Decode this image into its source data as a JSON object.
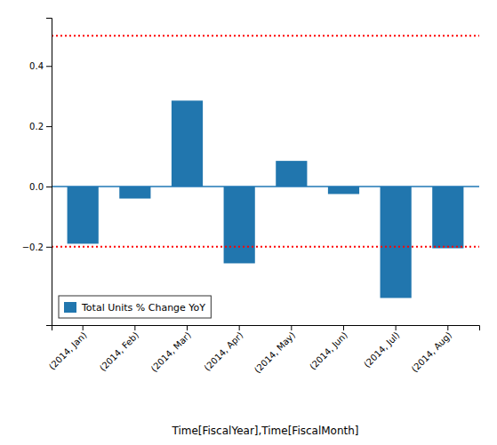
{
  "chart_data": {
    "type": "bar",
    "categories": [
      "(2014, Jan)",
      "(2014, Feb)",
      "(2014, Mar)",
      "(2014, Apr)",
      "(2014, May)",
      "(2014, Jun)",
      "(2014, Jul)",
      "(2014, Aug)"
    ],
    "series": [
      {
        "name": "Total Units % Change YoY",
        "color": "#2176ae",
        "values": [
          -0.19,
          -0.04,
          0.285,
          -0.255,
          0.085,
          -0.025,
          -0.37,
          -0.205
        ]
      }
    ],
    "xlabel": "Time[FiscalYear],Time[FiscalMonth]",
    "ylim": [
      -0.46,
      0.56
    ],
    "yticks": [
      {
        "value": -0.2,
        "label": "−0.2"
      },
      {
        "value": 0.0,
        "label": "0.0"
      },
      0.2,
      0.4
    ],
    "hlines": [
      {
        "value": 0.5,
        "color": "red",
        "line_style": "dotted"
      },
      {
        "value": -0.2,
        "color": "red",
        "line_style": "dotted"
      },
      {
        "value": 0,
        "color": "#1f77b4",
        "line_style": "solid"
      }
    ],
    "grid": false,
    "legend": "lower left"
  }
}
